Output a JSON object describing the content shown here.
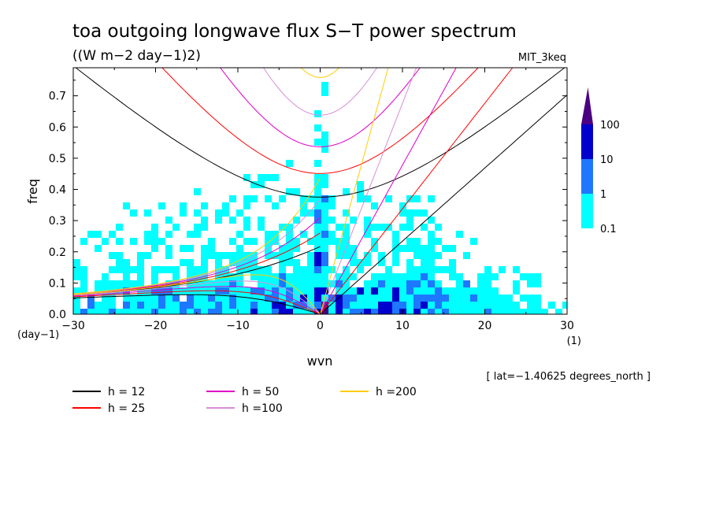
{
  "title": "toa outgoing longwave flux S−T power spectrum",
  "units": "((W m−2 day−1)2)",
  "model": "MIT_3keq",
  "footnote": "[ lat=−1.40625 degrees_north ]",
  "chart_data": {
    "type": "heatmap",
    "title": "toa outgoing longwave flux S−T power spectrum",
    "subtitle": "((W m−2 day−1)2)",
    "xlabel": "wvn",
    "ylabel": "freq",
    "x_unit": "(1)",
    "y_unit": "(day−1)",
    "xlim": [
      -30,
      30
    ],
    "ylim": [
      0,
      0.79
    ],
    "x_ticks": [
      "−30",
      "−20",
      "−10",
      "0",
      "10",
      "20",
      "30"
    ],
    "x_tick_values": [
      -30,
      -20,
      -10,
      0,
      10,
      20,
      30
    ],
    "y_ticks": [
      "0.0",
      "0.1",
      "0.2",
      "0.3",
      "0.4",
      "0.5",
      "0.6",
      "0.7"
    ],
    "y_tick_values": [
      0,
      0.1,
      0.2,
      0.3,
      0.4,
      0.5,
      0.6,
      0.7
    ],
    "colorbar": {
      "levels": [
        "0.1",
        "1",
        "10",
        "100"
      ],
      "colors": [
        "#00ffff",
        "#1e78ff",
        "#0000cd",
        "#4b0082"
      ]
    },
    "dispersion_curves": [
      {
        "label": "h = 12",
        "h": 12,
        "color": "#000000"
      },
      {
        "label": "h = 25",
        "h": 25,
        "color": "#ff0000"
      },
      {
        "label": "h = 50",
        "h": 50,
        "color": "#e000c8"
      },
      {
        "label": "h =100",
        "h": 100,
        "color": "#d88ed8"
      },
      {
        "label": "h =200",
        "h": 200,
        "color": "#ffcc00"
      }
    ]
  }
}
